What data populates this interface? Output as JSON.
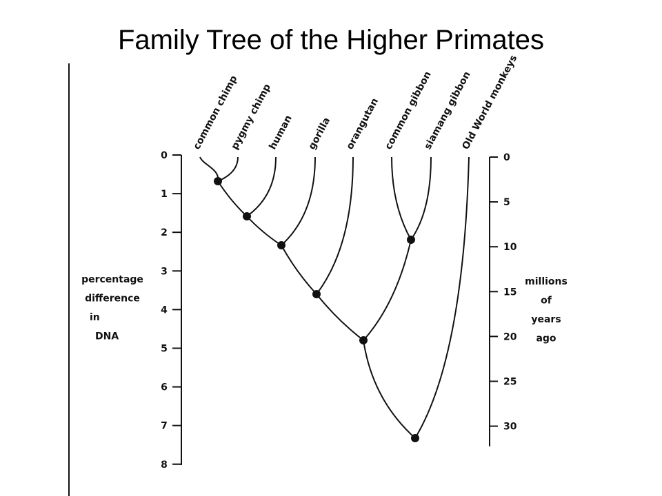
{
  "title": "Family Tree of the Higher Primates",
  "left_axis": {
    "label_lines": [
      "percentage",
      "difference",
      "in",
      "DNA"
    ],
    "ticks": [
      "0",
      "1",
      "2",
      "3",
      "4",
      "5",
      "6",
      "7",
      "8"
    ]
  },
  "right_axis": {
    "label_lines": [
      "millions",
      "of",
      "years",
      "ago"
    ],
    "ticks": [
      "0",
      "5",
      "10",
      "15",
      "20",
      "25",
      "30"
    ]
  },
  "species": [
    "common chimp",
    "pygmy chimp",
    "human",
    "gorilla",
    "orangutan",
    "common gibbon",
    "siamang gibbon",
    "Old World monkeys"
  ]
}
